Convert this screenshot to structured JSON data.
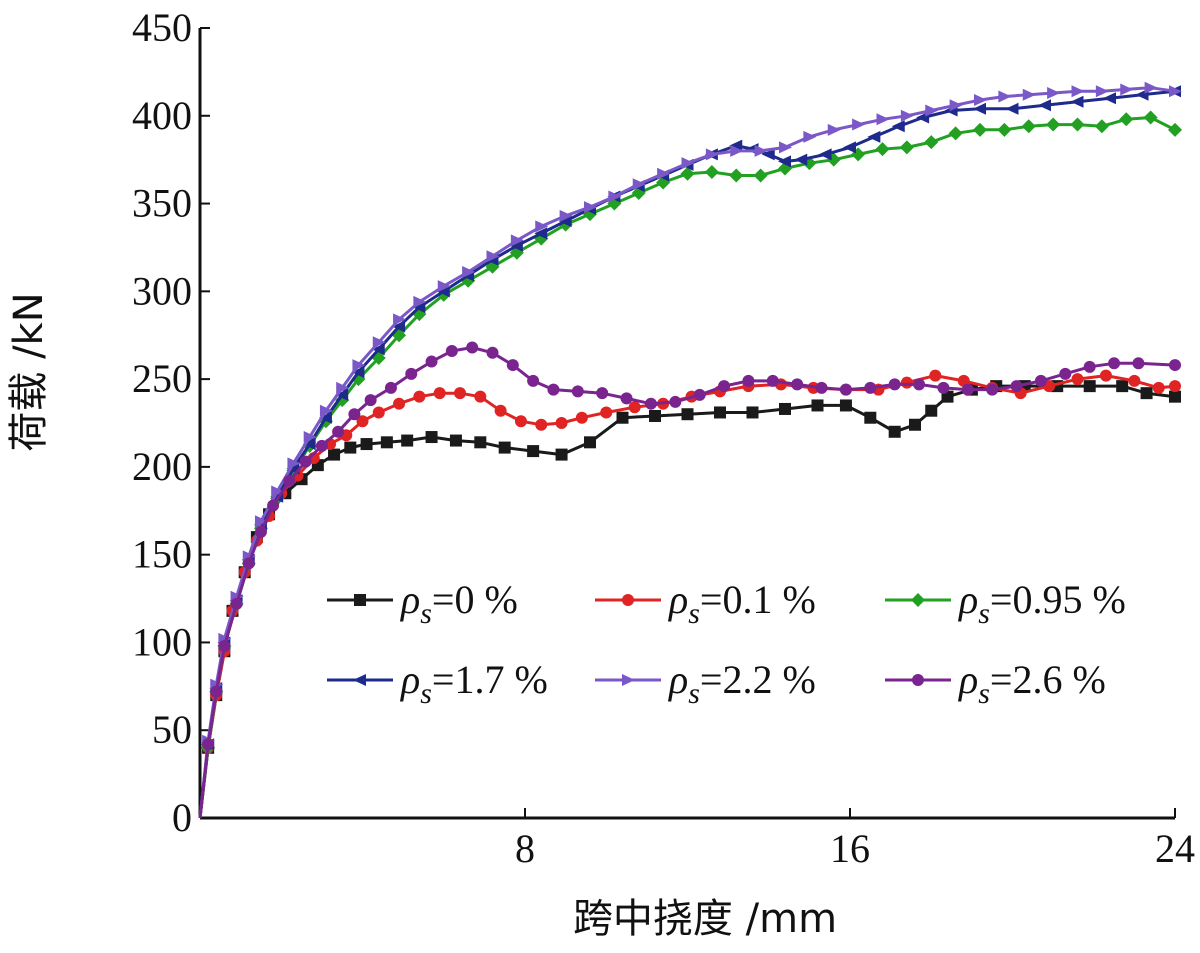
{
  "chart_data": {
    "type": "line",
    "xlabel": "跨中挠度 /mm",
    "ylabel": "荷载 /kN",
    "xlim": [
      0,
      24
    ],
    "ylim": [
      0,
      450
    ],
    "xticks": [
      "8",
      "16",
      "24"
    ],
    "xtick_values": [
      8,
      16,
      24
    ],
    "yticks": [
      "0",
      "50",
      "100",
      "150",
      "200",
      "250",
      "300",
      "350",
      "400",
      "450"
    ],
    "ytick_values": [
      0,
      50,
      100,
      150,
      200,
      250,
      300,
      350,
      400,
      450
    ],
    "grid": false,
    "legend_position": "lower-right",
    "series": [
      {
        "name_prefix": "ρ",
        "name_sub": "s",
        "name_suffix": "=0 %",
        "color": "#1a1a1a",
        "marker": "square",
        "x": [
          0,
          0.2,
          0.4,
          0.6,
          0.8,
          1.1,
          1.4,
          1.7,
          2.1,
          2.5,
          2.9,
          3.3,
          3.7,
          4.1,
          4.6,
          5.1,
          5.7,
          6.3,
          6.9,
          7.5,
          8.2,
          8.9,
          9.6,
          10.4,
          11.2,
          12,
          12.8,
          13.6,
          14.4,
          15.2,
          15.9,
          16.5,
          17.1,
          17.6,
          18,
          18.4,
          19,
          19.6,
          20.3,
          21.1,
          21.9,
          22.7,
          23.3,
          24
        ],
        "y": [
          0,
          40,
          70,
          95,
          118,
          140,
          160,
          173,
          185,
          193,
          201,
          207,
          211,
          213,
          214,
          215,
          217,
          215,
          214,
          211,
          209,
          207,
          214,
          228,
          229,
          230,
          231,
          231,
          233,
          235,
          235,
          228,
          220,
          224,
          232,
          240,
          244,
          246,
          246,
          246,
          246,
          246,
          242,
          240
        ]
      },
      {
        "name_prefix": "ρ",
        "name_sub": "s",
        "name_suffix": "=0.1 %",
        "color": "#e02424",
        "marker": "circle",
        "x": [
          0,
          0.2,
          0.4,
          0.6,
          0.8,
          1.1,
          1.4,
          1.7,
          2.0,
          2.4,
          2.8,
          3.2,
          3.6,
          4.0,
          4.4,
          4.9,
          5.4,
          5.9,
          6.4,
          6.9,
          7.4,
          7.9,
          8.4,
          8.9,
          9.4,
          10,
          10.7,
          11.4,
          12.1,
          12.8,
          13.5,
          14.3,
          15.1,
          15.9,
          16.7,
          17.4,
          18.1,
          18.8,
          19.5,
          20.2,
          20.9,
          21.6,
          22.3,
          23,
          23.6,
          24
        ],
        "y": [
          0,
          40,
          70,
          95,
          118,
          140,
          158,
          172,
          185,
          195,
          205,
          213,
          218,
          226,
          231,
          236,
          240,
          242,
          242,
          240,
          232,
          226,
          224,
          225,
          228,
          231,
          234,
          236,
          240,
          243,
          246,
          247,
          245,
          244,
          244,
          248,
          252,
          249,
          245,
          242,
          246,
          250,
          252,
          249,
          245,
          246
        ]
      },
      {
        "name_prefix": "ρ",
        "name_sub": "s",
        "name_suffix": "=0.95 %",
        "color": "#22a022",
        "marker": "diamond",
        "x": [
          0,
          0.2,
          0.4,
          0.6,
          0.9,
          1.2,
          1.5,
          1.9,
          2.3,
          2.7,
          3.1,
          3.5,
          3.9,
          4.4,
          4.9,
          5.4,
          6.0,
          6.6,
          7.2,
          7.8,
          8.4,
          9.0,
          9.6,
          10.2,
          10.8,
          11.4,
          12,
          12.6,
          13.2,
          13.8,
          14.4,
          15.0,
          15.6,
          16.2,
          16.8,
          17.4,
          18,
          18.6,
          19.2,
          19.8,
          20.4,
          21,
          21.6,
          22.2,
          22.8,
          23.4,
          24
        ],
        "y": [
          0,
          40,
          72,
          98,
          122,
          145,
          165,
          182,
          198,
          212,
          226,
          238,
          250,
          262,
          275,
          287,
          298,
          306,
          314,
          322,
          330,
          338,
          344,
          350,
          356,
          362,
          367,
          368,
          366,
          366,
          370,
          373,
          375,
          378,
          381,
          382,
          385,
          390,
          392,
          392,
          394,
          395,
          395,
          394,
          398,
          399,
          392
        ]
      },
      {
        "name_prefix": "ρ",
        "name_sub": "s",
        "name_suffix": "=1.7 %",
        "color": "#1e2a8c",
        "marker": "triangle-left",
        "x": [
          0,
          0.2,
          0.4,
          0.6,
          0.9,
          1.2,
          1.5,
          1.9,
          2.3,
          2.7,
          3.1,
          3.5,
          3.9,
          4.4,
          4.9,
          5.4,
          6.0,
          6.6,
          7.2,
          7.8,
          8.4,
          9.0,
          9.6,
          10.2,
          10.8,
          11.4,
          12,
          12.6,
          13.2,
          13.6,
          14.0,
          14.4,
          14.8,
          15.4,
          16.0,
          16.6,
          17.2,
          17.8,
          18.5,
          19.2,
          20,
          20.8,
          21.6,
          22.4,
          23.2,
          24
        ],
        "y": [
          0,
          42,
          74,
          100,
          124,
          147,
          167,
          183,
          199,
          213,
          228,
          241,
          254,
          267,
          280,
          291,
          300,
          309,
          318,
          326,
          333,
          340,
          347,
          354,
          360,
          366,
          372,
          378,
          383,
          381,
          378,
          374,
          375,
          378,
          382,
          388,
          394,
          399,
          403,
          404,
          404,
          406,
          408,
          410,
          412,
          414
        ]
      },
      {
        "name_prefix": "ρ",
        "name_sub": "s",
        "name_suffix": "=2.2 %",
        "color": "#7a58c8",
        "marker": "triangle-right",
        "x": [
          0,
          0.2,
          0.4,
          0.6,
          0.9,
          1.2,
          1.5,
          1.9,
          2.3,
          2.7,
          3.1,
          3.5,
          3.9,
          4.4,
          4.9,
          5.4,
          6.0,
          6.6,
          7.2,
          7.8,
          8.4,
          9.0,
          9.6,
          10.2,
          10.8,
          11.4,
          12,
          12.6,
          13.2,
          13.8,
          14.4,
          15.0,
          15.6,
          16.2,
          16.8,
          17.4,
          18,
          18.6,
          19.2,
          19.8,
          20.4,
          21,
          21.6,
          22.2,
          22.8,
          23.4,
          24
        ],
        "y": [
          0,
          44,
          76,
          102,
          126,
          149,
          169,
          186,
          202,
          217,
          232,
          245,
          258,
          271,
          284,
          294,
          303,
          311,
          320,
          329,
          337,
          343,
          348,
          354,
          361,
          367,
          373,
          378,
          380,
          380,
          382,
          388,
          392,
          395,
          398,
          400,
          403,
          406,
          409,
          411,
          412,
          413,
          414,
          414,
          415,
          416,
          414
        ]
      },
      {
        "name_prefix": "ρ",
        "name_sub": "s",
        "name_suffix": "=2.6 %",
        "color": "#7a2490",
        "marker": "circle",
        "x": [
          0,
          0.2,
          0.4,
          0.6,
          0.9,
          1.2,
          1.5,
          1.8,
          2.2,
          2.6,
          3.0,
          3.4,
          3.8,
          4.2,
          4.7,
          5.2,
          5.7,
          6.2,
          6.7,
          7.2,
          7.7,
          8.2,
          8.7,
          9.3,
          9.9,
          10.5,
          11.1,
          11.7,
          12.3,
          12.9,
          13.5,
          14.1,
          14.7,
          15.3,
          15.9,
          16.5,
          17.1,
          17.7,
          18.3,
          18.9,
          19.5,
          20.1,
          20.7,
          21.3,
          21.9,
          22.5,
          23.1,
          24
        ],
        "y": [
          0,
          42,
          72,
          98,
          122,
          145,
          163,
          178,
          192,
          203,
          212,
          220,
          230,
          238,
          245,
          253,
          260,
          266,
          268,
          265,
          258,
          249,
          244,
          243,
          242,
          239,
          236,
          237,
          241,
          246,
          249,
          249,
          247,
          245,
          244,
          245,
          247,
          247,
          245,
          244,
          244,
          246,
          249,
          253,
          257,
          259,
          259,
          258
        ]
      }
    ]
  }
}
